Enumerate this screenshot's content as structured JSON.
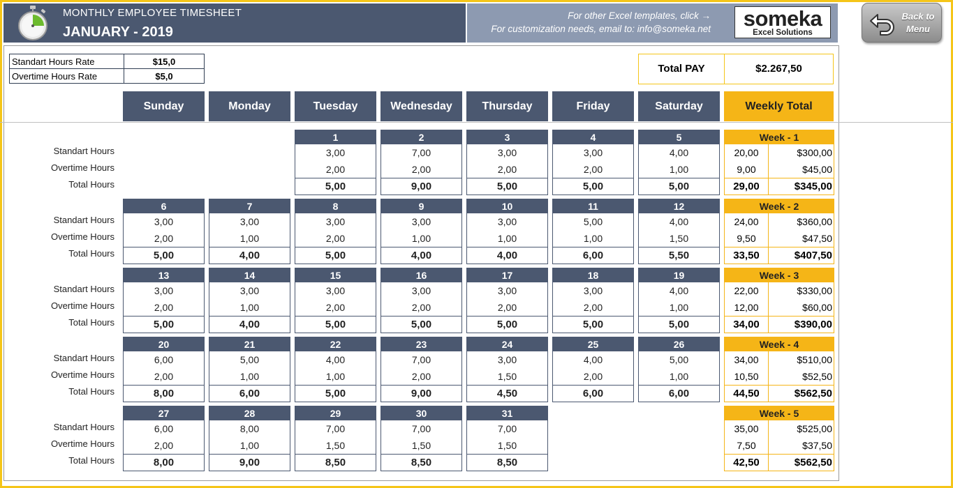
{
  "header": {
    "title": "MONTHLY EMPLOYEE TIMESHEET",
    "month": "JANUARY - 2019",
    "info_line1": "For other Excel templates, click →",
    "info_line2": "For customization needs, email to: info@someka.net",
    "logo_main": "someka",
    "logo_sub": "Excel Solutions",
    "back_button": "Back to Menu"
  },
  "rates": [
    {
      "label": "Standart Hours Rate",
      "value": "$15,0"
    },
    {
      "label": "Overtime Hours Rate",
      "value": "$5,0"
    }
  ],
  "total_pay": {
    "label": "Total PAY",
    "value": "$2.267,50"
  },
  "days": [
    "Sunday",
    "Monday",
    "Tuesday",
    "Wednesday",
    "Thursday",
    "Friday",
    "Saturday"
  ],
  "weekly_total_label": "Weekly Total",
  "row_labels": {
    "standard": "Standart Hours",
    "overtime": "Overtime Hours",
    "total": "Total Hours"
  },
  "weeks": [
    {
      "label": "Week - 1",
      "days": [
        null,
        null,
        {
          "date": "1",
          "std": "3,00",
          "ot": "2,00",
          "total": "5,00"
        },
        {
          "date": "2",
          "std": "7,00",
          "ot": "2,00",
          "total": "9,00"
        },
        {
          "date": "3",
          "std": "3,00",
          "ot": "2,00",
          "total": "5,00"
        },
        {
          "date": "4",
          "std": "3,00",
          "ot": "2,00",
          "total": "5,00"
        },
        {
          "date": "5",
          "std": "4,00",
          "ot": "1,00",
          "total": "5,00"
        }
      ],
      "summary": {
        "std_hours": "20,00",
        "std_pay": "$300,00",
        "ot_hours": "9,00",
        "ot_pay": "$45,00",
        "total_hours": "29,00",
        "total_pay": "$345,00"
      }
    },
    {
      "label": "Week - 2",
      "days": [
        {
          "date": "6",
          "std": "3,00",
          "ot": "2,00",
          "total": "5,00"
        },
        {
          "date": "7",
          "std": "3,00",
          "ot": "1,00",
          "total": "4,00"
        },
        {
          "date": "8",
          "std": "3,00",
          "ot": "2,00",
          "total": "5,00"
        },
        {
          "date": "9",
          "std": "3,00",
          "ot": "1,00",
          "total": "4,00"
        },
        {
          "date": "10",
          "std": "3,00",
          "ot": "1,00",
          "total": "4,00"
        },
        {
          "date": "11",
          "std": "5,00",
          "ot": "1,00",
          "total": "6,00"
        },
        {
          "date": "12",
          "std": "4,00",
          "ot": "1,50",
          "total": "5,50"
        }
      ],
      "summary": {
        "std_hours": "24,00",
        "std_pay": "$360,00",
        "ot_hours": "9,50",
        "ot_pay": "$47,50",
        "total_hours": "33,50",
        "total_pay": "$407,50"
      }
    },
    {
      "label": "Week - 3",
      "days": [
        {
          "date": "13",
          "std": "3,00",
          "ot": "2,00",
          "total": "5,00"
        },
        {
          "date": "14",
          "std": "3,00",
          "ot": "1,00",
          "total": "4,00"
        },
        {
          "date": "15",
          "std": "3,00",
          "ot": "2,00",
          "total": "5,00"
        },
        {
          "date": "16",
          "std": "3,00",
          "ot": "2,00",
          "total": "5,00"
        },
        {
          "date": "17",
          "std": "3,00",
          "ot": "2,00",
          "total": "5,00"
        },
        {
          "date": "18",
          "std": "3,00",
          "ot": "2,00",
          "total": "5,00"
        },
        {
          "date": "19",
          "std": "4,00",
          "ot": "1,00",
          "total": "5,00"
        }
      ],
      "summary": {
        "std_hours": "22,00",
        "std_pay": "$330,00",
        "ot_hours": "12,00",
        "ot_pay": "$60,00",
        "total_hours": "34,00",
        "total_pay": "$390,00"
      }
    },
    {
      "label": "Week - 4",
      "days": [
        {
          "date": "20",
          "std": "6,00",
          "ot": "2,00",
          "total": "8,00"
        },
        {
          "date": "21",
          "std": "5,00",
          "ot": "1,00",
          "total": "6,00"
        },
        {
          "date": "22",
          "std": "4,00",
          "ot": "1,00",
          "total": "5,00"
        },
        {
          "date": "23",
          "std": "7,00",
          "ot": "2,00",
          "total": "9,00"
        },
        {
          "date": "24",
          "std": "3,00",
          "ot": "1,50",
          "total": "4,50"
        },
        {
          "date": "25",
          "std": "4,00",
          "ot": "2,00",
          "total": "6,00"
        },
        {
          "date": "26",
          "std": "5,00",
          "ot": "1,00",
          "total": "6,00"
        }
      ],
      "summary": {
        "std_hours": "34,00",
        "std_pay": "$510,00",
        "ot_hours": "10,50",
        "ot_pay": "$52,50",
        "total_hours": "44,50",
        "total_pay": "$562,50"
      }
    },
    {
      "label": "Week - 5",
      "days": [
        {
          "date": "27",
          "std": "6,00",
          "ot": "2,00",
          "total": "8,00"
        },
        {
          "date": "28",
          "std": "8,00",
          "ot": "1,00",
          "total": "9,00"
        },
        {
          "date": "29",
          "std": "7,00",
          "ot": "1,50",
          "total": "8,50"
        },
        {
          "date": "30",
          "std": "7,00",
          "ot": "1,50",
          "total": "8,50"
        },
        {
          "date": "31",
          "std": "7,00",
          "ot": "1,50",
          "total": "8,50"
        },
        null,
        null
      ],
      "summary": {
        "std_hours": "35,00",
        "std_pay": "$525,00",
        "ot_hours": "7,50",
        "ot_pay": "$37,50",
        "total_hours": "42,50",
        "total_pay": "$562,50"
      }
    }
  ],
  "colors": {
    "header_bg": "#4b5870",
    "info_bg": "#8d9ab1",
    "accent": "#f5b517",
    "frame": "#f5c518"
  },
  "icons": {
    "header": "stopwatch-icon",
    "back": "back-arrow-icon"
  }
}
